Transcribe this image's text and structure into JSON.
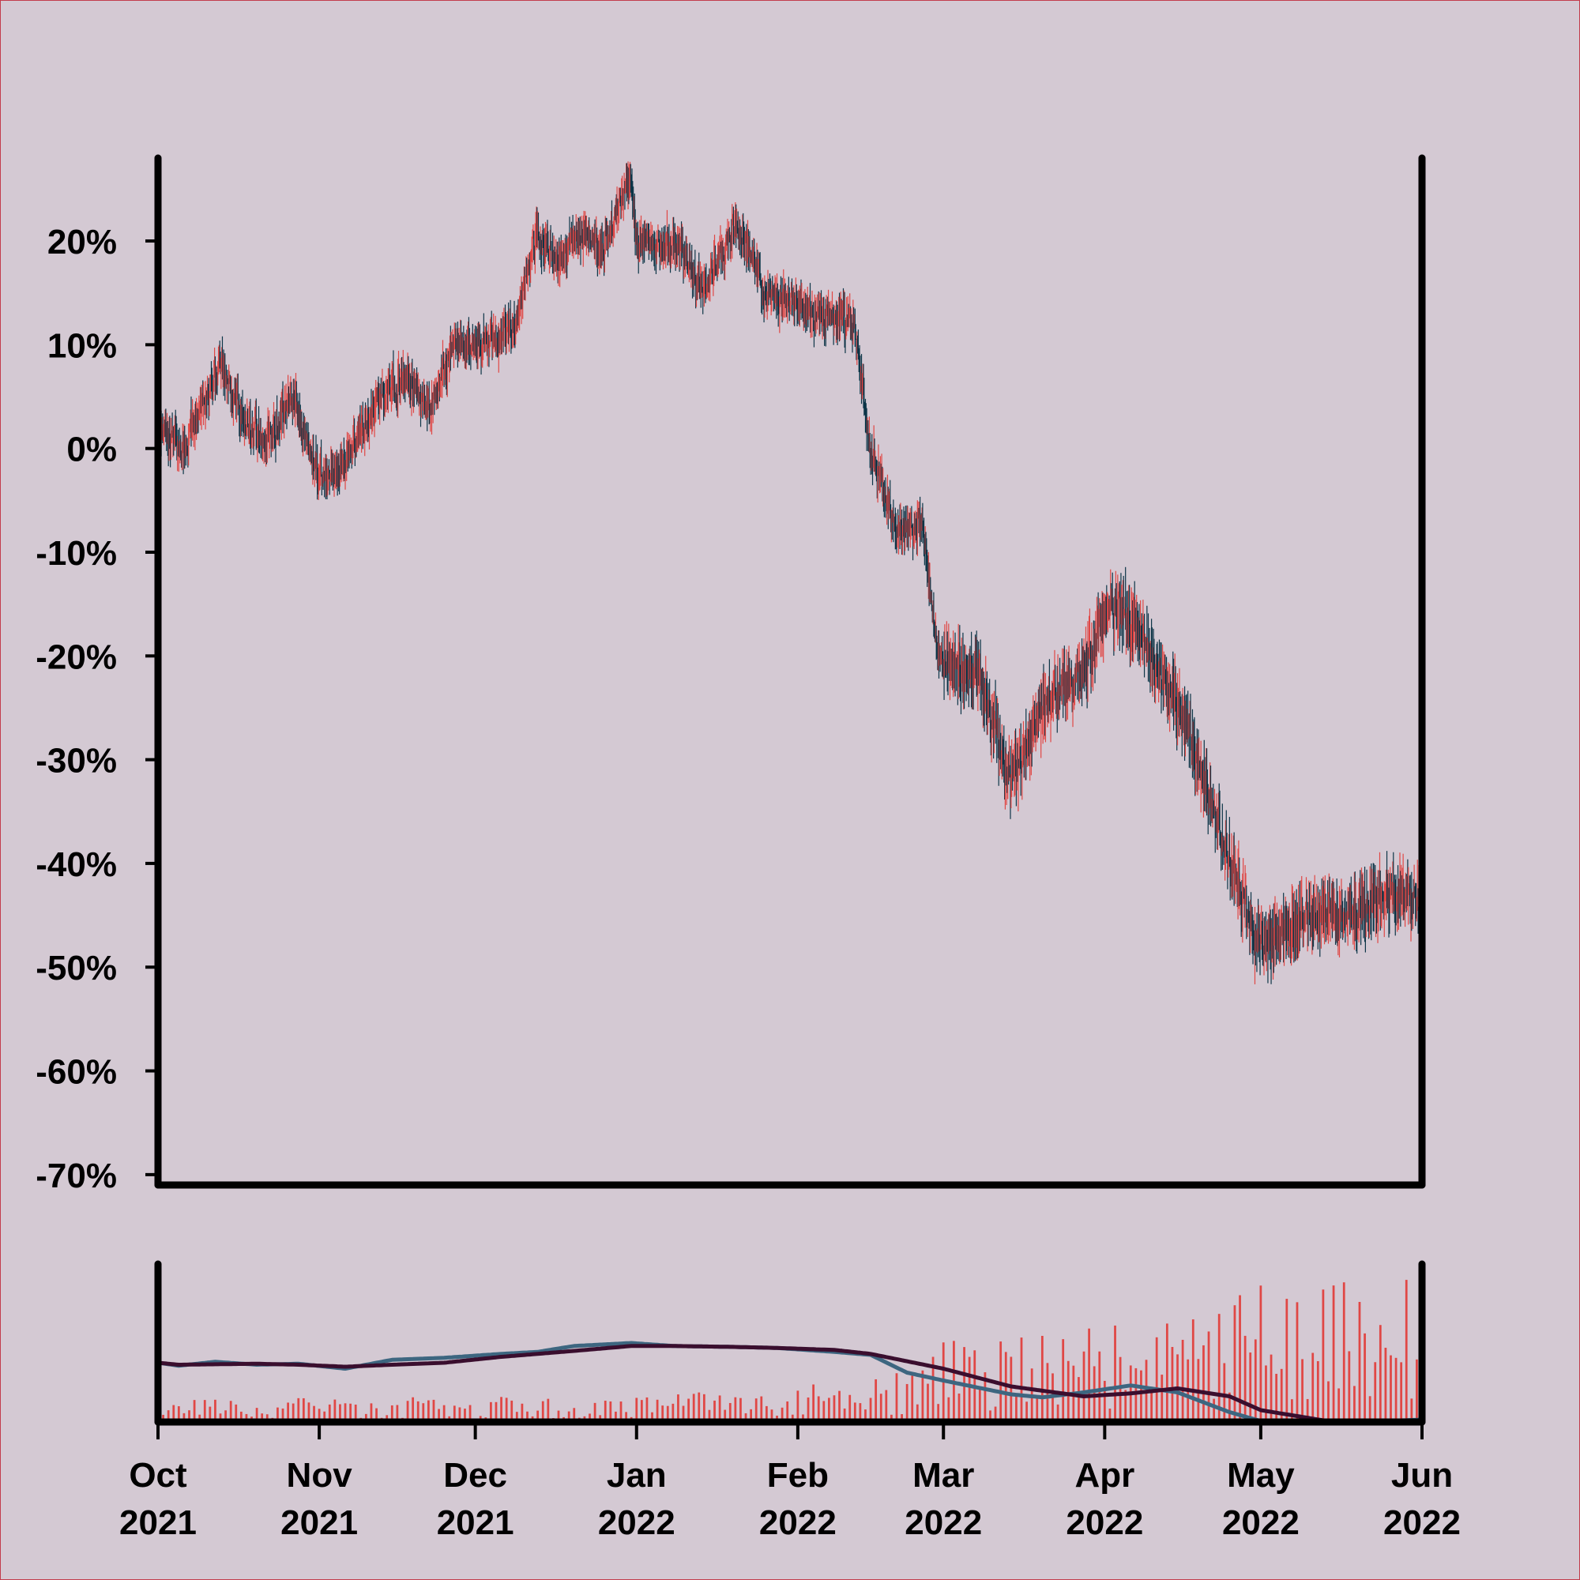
{
  "chart_data": [
    {
      "type": "candlestick",
      "title": "",
      "xlabel": "",
      "ylabel": "",
      "ylim": [
        -71,
        28
      ],
      "y_ticks": [
        "20%",
        "10%",
        "0%",
        "-10%",
        "-20%",
        "-30%",
        "-40%",
        "-50%",
        "-60%",
        "-70%"
      ],
      "x_range": [
        "2021-10-01",
        "2022-06-01"
      ],
      "up_color": "#e04745",
      "down_color": "#0d3547",
      "grid": false,
      "anchors": [
        [
          "2021-10-01",
          2
        ],
        [
          "2021-10-06",
          0
        ],
        [
          "2021-10-13",
          8
        ],
        [
          "2021-10-18",
          2
        ],
        [
          "2021-10-22",
          1
        ],
        [
          "2021-10-27",
          5
        ],
        [
          "2021-11-01",
          -3
        ],
        [
          "2021-11-05",
          -2
        ],
        [
          "2021-11-12",
          4
        ],
        [
          "2021-11-18",
          7
        ],
        [
          "2021-11-22",
          4
        ],
        [
          "2021-11-27",
          10
        ],
        [
          "2021-12-04",
          10
        ],
        [
          "2021-12-09",
          12
        ],
        [
          "2021-12-13",
          21
        ],
        [
          "2021-12-17",
          18
        ],
        [
          "2021-12-22",
          21
        ],
        [
          "2021-12-25",
          19
        ],
        [
          "2021-12-31",
          26
        ],
        [
          "2022-01-01",
          20
        ],
        [
          "2022-01-10",
          19
        ],
        [
          "2022-01-14",
          15
        ],
        [
          "2022-01-20",
          22
        ],
        [
          "2022-01-26",
          15
        ],
        [
          "2022-02-04",
          13
        ],
        [
          "2022-02-12",
          12
        ],
        [
          "2022-02-15",
          0
        ],
        [
          "2022-02-20",
          -8
        ],
        [
          "2022-02-25",
          -7
        ],
        [
          "2022-02-28",
          -20
        ],
        [
          "2022-03-08",
          -22
        ],
        [
          "2022-03-14",
          -32
        ],
        [
          "2022-03-20",
          -25
        ],
        [
          "2022-03-28",
          -21
        ],
        [
          "2022-04-03",
          -15
        ],
        [
          "2022-04-08",
          -18
        ],
        [
          "2022-04-17",
          -27
        ],
        [
          "2022-04-25",
          -40
        ],
        [
          "2022-05-01",
          -48
        ],
        [
          "2022-05-05",
          -47
        ],
        [
          "2022-05-10",
          -45
        ],
        [
          "2022-05-18",
          -45
        ],
        [
          "2022-05-23",
          -43
        ],
        [
          "2022-05-31",
          -43
        ],
        [
          "2022-06-01",
          -44
        ]
      ]
    },
    {
      "type": "bar+line",
      "title": "",
      "bar_color": "#e04745",
      "line1_color": "#3d6680",
      "line2_color": "#3a0e2e",
      "volume_base": [
        [
          "2021-10-01",
          1.0
        ],
        [
          "2021-12-31",
          1.1
        ],
        [
          "2022-02-15",
          1.8
        ],
        [
          "2022-03-01",
          3.4
        ],
        [
          "2022-04-15",
          4.5
        ],
        [
          "2022-05-01",
          5.8
        ],
        [
          "2022-06-01",
          6.2
        ]
      ],
      "short_ma": [
        [
          "2021-10-01",
          3.0
        ],
        [
          "2021-10-05",
          2.85
        ],
        [
          "2021-10-12",
          3.05
        ],
        [
          "2021-10-20",
          2.9
        ],
        [
          "2021-10-28",
          2.95
        ],
        [
          "2021-11-06",
          2.7
        ],
        [
          "2021-11-15",
          3.15
        ],
        [
          "2021-11-25",
          3.25
        ],
        [
          "2021-12-06",
          3.45
        ],
        [
          "2021-12-13",
          3.55
        ],
        [
          "2021-12-20",
          3.85
        ],
        [
          "2021-12-31",
          4.0
        ],
        [
          "2022-01-08",
          3.85
        ],
        [
          "2022-01-20",
          3.8
        ],
        [
          "2022-01-28",
          3.75
        ],
        [
          "2022-02-08",
          3.55
        ],
        [
          "2022-02-15",
          3.4
        ],
        [
          "2022-02-22",
          2.5
        ],
        [
          "2022-03-01",
          2.1
        ],
        [
          "2022-03-14",
          1.4
        ],
        [
          "2022-03-20",
          1.25
        ],
        [
          "2022-03-28",
          1.5
        ],
        [
          "2022-04-06",
          1.85
        ],
        [
          "2022-04-15",
          1.5
        ],
        [
          "2022-04-25",
          0.5
        ],
        [
          "2022-05-01",
          0.05
        ],
        [
          "2022-05-15",
          -0.05
        ],
        [
          "2022-06-01",
          0.12
        ]
      ],
      "long_ma": [
        [
          "2021-10-01",
          3.0
        ],
        [
          "2021-10-05",
          2.9
        ],
        [
          "2021-10-20",
          2.95
        ],
        [
          "2021-10-28",
          2.9
        ],
        [
          "2021-11-06",
          2.8
        ],
        [
          "2021-11-15",
          2.9
        ],
        [
          "2021-11-25",
          3.0
        ],
        [
          "2021-12-06",
          3.3
        ],
        [
          "2021-12-20",
          3.6
        ],
        [
          "2021-12-31",
          3.85
        ],
        [
          "2022-01-08",
          3.85
        ],
        [
          "2022-01-20",
          3.8
        ],
        [
          "2022-01-28",
          3.75
        ],
        [
          "2022-02-08",
          3.65
        ],
        [
          "2022-02-15",
          3.45
        ],
        [
          "2022-03-01",
          2.7
        ],
        [
          "2022-03-14",
          1.8
        ],
        [
          "2022-03-28",
          1.3
        ],
        [
          "2022-04-06",
          1.45
        ],
        [
          "2022-04-15",
          1.7
        ],
        [
          "2022-04-25",
          1.3
        ],
        [
          "2022-05-01",
          0.6
        ],
        [
          "2022-05-15",
          0.0
        ],
        [
          "2022-06-01",
          0.08
        ]
      ]
    }
  ],
  "x_ticks": [
    {
      "month": "Oct",
      "year": "2021",
      "date": "2021-10-01"
    },
    {
      "month": "Nov",
      "year": "2021",
      "date": "2021-11-01"
    },
    {
      "month": "Dec",
      "year": "2021",
      "date": "2021-12-01"
    },
    {
      "month": "Jan",
      "year": "2022",
      "date": "2022-01-01"
    },
    {
      "month": "Feb",
      "year": "2022",
      "date": "2022-02-01"
    },
    {
      "month": "Mar",
      "year": "2022",
      "date": "2022-03-01"
    },
    {
      "month": "Apr",
      "year": "2022",
      "date": "2022-04-01"
    },
    {
      "month": "May",
      "year": "2022",
      "date": "2022-05-01"
    },
    {
      "month": "Jun",
      "year": "2022",
      "date": "2022-06-01"
    }
  ]
}
